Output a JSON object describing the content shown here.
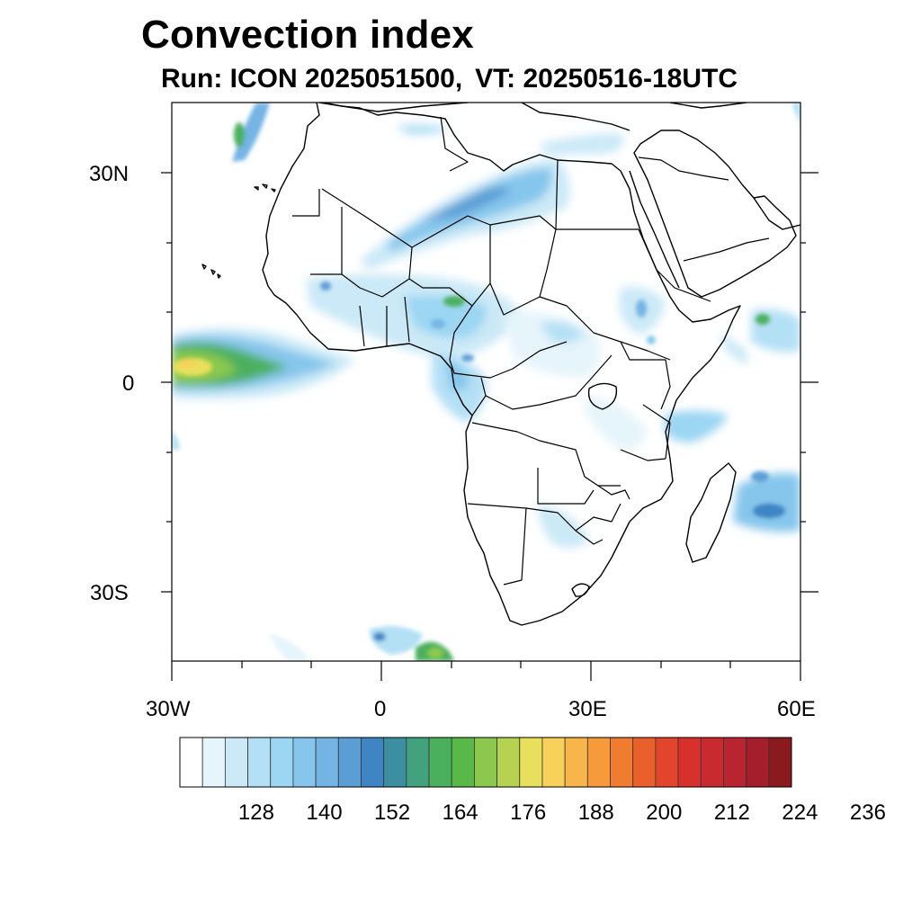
{
  "title": "Convection index",
  "subtitle": {
    "run": "Run: ICON 2025051500,",
    "valid_time": "VT: 20250516-18UTC"
  },
  "map": {
    "projection": "cylindrical-equidistant",
    "extent": {
      "lon": [
        -30,
        60
      ],
      "lat": [
        -40,
        40
      ]
    },
    "lat_labels": [
      "30N",
      "0",
      "30S"
    ],
    "lon_labels": [
      "30W",
      "0",
      "30E",
      "60E"
    ],
    "features": [
      "coastlines",
      "country-borders"
    ],
    "field": "convection index"
  },
  "colorbar": {
    "colors": [
      "#ffffff",
      "#e6f4fb",
      "#cbe9f7",
      "#b4e0f5",
      "#9bd6f3",
      "#86c6ec",
      "#74b4e4",
      "#5b9ed6",
      "#3f84c3",
      "#3c8fa1",
      "#42a27e",
      "#4bb05e",
      "#58b948",
      "#8cc84e",
      "#b5d350",
      "#e8e05c",
      "#f8d15a",
      "#f7b54a",
      "#f79a3b",
      "#f07c30",
      "#e9602c",
      "#e2452b",
      "#d8312c",
      "#c92a2f",
      "#b92431",
      "#a41e2b",
      "#8b1a1f"
    ],
    "labels": [
      "128",
      "140",
      "152",
      "164",
      "176",
      "188",
      "200",
      "212",
      "224",
      "236"
    ],
    "label_box_index": [
      3,
      6,
      9,
      12,
      15,
      18,
      21,
      24,
      27,
      30
    ]
  }
}
